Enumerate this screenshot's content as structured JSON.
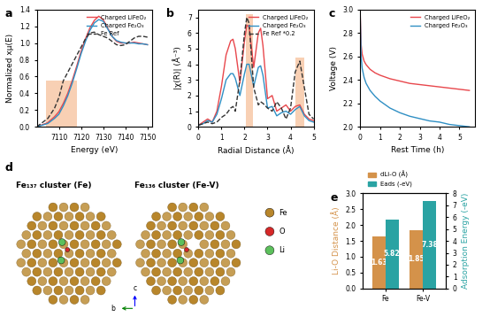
{
  "chart_data": [
    {
      "type": "line",
      "panel_label": "a",
      "x_label": "Energy (eV)",
      "y_label": "Normalized xμ(E)",
      "x": [
        7100,
        7105,
        7108,
        7110,
        7112,
        7114,
        7116,
        7118,
        7120,
        7122,
        7124,
        7126,
        7128,
        7130,
        7132,
        7134,
        7136,
        7138,
        7140,
        7142,
        7144,
        7146,
        7148,
        7150
      ],
      "series": [
        {
          "name": "Charged LiFeO₂",
          "color": "#e8474c",
          "line_style": "solid",
          "values": [
            0.0,
            0.05,
            0.12,
            0.18,
            0.28,
            0.4,
            0.55,
            0.72,
            0.9,
            1.05,
            1.18,
            1.27,
            1.32,
            1.28,
            1.18,
            1.08,
            1.02,
            1.0,
            1.0,
            1.0,
            1.01,
            1.0,
            0.99,
            0.98
          ]
        },
        {
          "name": "Charged Fe₂O₃",
          "color": "#2f8fc4",
          "line_style": "solid",
          "values": [
            0.0,
            0.04,
            0.1,
            0.15,
            0.25,
            0.37,
            0.52,
            0.69,
            0.87,
            1.02,
            1.15,
            1.24,
            1.28,
            1.26,
            1.17,
            1.08,
            1.03,
            1.01,
            1.0,
            1.0,
            1.0,
            0.99,
            0.99,
            0.98
          ]
        },
        {
          "name": "Fe Ref",
          "color": "#333333",
          "line_style": "dashed",
          "values": [
            0.0,
            0.1,
            0.22,
            0.35,
            0.55,
            0.65,
            0.75,
            0.85,
            0.95,
            1.05,
            1.12,
            1.13,
            1.1,
            1.08,
            1.06,
            1.02,
            0.98,
            0.97,
            0.98,
            1.02,
            1.06,
            1.08,
            1.08,
            1.07
          ]
        }
      ],
      "shaded": [
        {
          "x": [
            7104,
            7118
          ],
          "y": [
            0,
            0.55
          ]
        }
      ],
      "xlim": [
        7100,
        7152
      ],
      "xticks": [
        7110,
        7120,
        7130,
        7140,
        7150
      ],
      "ylim": [
        0.0,
        1.4
      ],
      "yticks": [
        0.0,
        0.2,
        0.4,
        0.6,
        0.8,
        1.0,
        1.2,
        1.4
      ],
      "legend": "upper right"
    },
    {
      "type": "line",
      "panel_label": "b",
      "x_label": "Radial Distance (Å)",
      "y_label": "|χ(R)| (Å⁻³)",
      "x": [
        0,
        0.2,
        0.4,
        0.6,
        0.8,
        1.0,
        1.2,
        1.4,
        1.5,
        1.6,
        1.8,
        2.0,
        2.1,
        2.2,
        2.4,
        2.6,
        2.7,
        2.8,
        3.0,
        3.2,
        3.4,
        3.6,
        3.8,
        4.0,
        4.2,
        4.4,
        4.6,
        4.8,
        5.0
      ],
      "series": [
        {
          "name": "Charged LiFeO₂",
          "color": "#e8474c",
          "line_style": "solid",
          "values": [
            0.1,
            0.3,
            0.5,
            0.3,
            1.0,
            2.6,
            4.6,
            5.5,
            5.6,
            5.0,
            2.8,
            5.5,
            6.5,
            6.4,
            3.8,
            6.0,
            6.3,
            5.2,
            1.8,
            2.0,
            1.0,
            1.2,
            1.4,
            1.0,
            1.3,
            1.4,
            0.8,
            0.5,
            0.4
          ]
        },
        {
          "name": "Charged Fe₂O₃",
          "color": "#2f8fc4",
          "line_style": "solid",
          "values": [
            0.1,
            0.2,
            0.4,
            0.3,
            0.8,
            1.8,
            3.0,
            3.4,
            3.4,
            3.1,
            2.0,
            3.4,
            4.0,
            4.0,
            2.6,
            3.8,
            3.9,
            3.3,
            1.2,
            1.3,
            0.7,
            0.9,
            1.0,
            0.8,
            1.1,
            1.3,
            0.7,
            0.4,
            0.3
          ]
        },
        {
          "name": "Fe Ref *0.2",
          "color": "#333333",
          "line_style": "dashed",
          "values": [
            0.1,
            0.2,
            0.3,
            0.2,
            0.3,
            0.6,
            0.8,
            1.2,
            1.3,
            1.0,
            3.0,
            6.0,
            7.0,
            6.6,
            2.5,
            1.4,
            1.6,
            1.5,
            1.2,
            1.0,
            1.6,
            1.2,
            0.5,
            1.2,
            3.5,
            4.2,
            2.5,
            0.8,
            0.5
          ]
        }
      ],
      "shaded": [
        {
          "x": [
            2.05,
            2.35
          ],
          "y": [
            0,
            7.2
          ]
        },
        {
          "x": [
            4.2,
            4.6
          ],
          "y": [
            0,
            4.4
          ]
        }
      ],
      "xlim": [
        0,
        5
      ],
      "xticks": [
        0,
        1,
        2,
        3,
        4,
        5
      ],
      "ylim": [
        0,
        7.5
      ],
      "yticks": [
        0,
        1,
        2,
        3,
        4,
        5,
        6,
        7
      ],
      "legend": "upper right"
    },
    {
      "type": "line",
      "panel_label": "c",
      "x_label": "Rest Time (h)",
      "y_label": "Voltage (V)",
      "x": [
        0,
        0.05,
        0.1,
        0.2,
        0.3,
        0.5,
        0.75,
        1,
        1.5,
        2,
        2.5,
        3,
        3.5,
        4,
        4.5,
        5,
        5.5
      ],
      "series": [
        {
          "name": "Charged LiFeO₂",
          "color": "#e8474c",
          "line_style": "solid",
          "values": [
            2.98,
            2.7,
            2.62,
            2.56,
            2.53,
            2.49,
            2.46,
            2.44,
            2.41,
            2.39,
            2.37,
            2.36,
            2.35,
            2.34,
            2.33,
            2.32,
            2.31
          ]
        },
        {
          "name": "Charged Fe₂O₃",
          "color": "#2f8fc4",
          "line_style": "solid",
          "values": [
            2.98,
            2.6,
            2.5,
            2.42,
            2.37,
            2.31,
            2.26,
            2.22,
            2.16,
            2.12,
            2.09,
            2.07,
            2.05,
            2.04,
            2.02,
            2.01,
            2.0
          ]
        }
      ],
      "xlim": [
        0,
        5.8
      ],
      "xticks": [
        0,
        1,
        2,
        3,
        4,
        5
      ],
      "ylim": [
        2.0,
        3.0
      ],
      "yticks": [
        2.0,
        2.2,
        2.4,
        2.6,
        2.8,
        3.0
      ],
      "legend": "upper right"
    },
    {
      "type": "bar",
      "panel_label": "e",
      "categories": [
        "Fe",
        "Fe-V"
      ],
      "y_label": "Li-O Distance (Å)",
      "y2_label": "Adsorption Energy (-eV)",
      "series": [
        {
          "name": "dLi-O (Å)",
          "color": "#d4924a",
          "values": [
            1.63,
            1.85
          ]
        },
        {
          "name": "Eads (-eV)",
          "color": "#2aa3a3",
          "axis": "y2",
          "values": [
            5.82,
            7.38
          ]
        }
      ],
      "ylim": [
        0.0,
        3.0
      ],
      "yticks": [
        0.0,
        0.5,
        1.0,
        1.5,
        2.0,
        2.5,
        3.0
      ],
      "y2lim": [
        0,
        8
      ],
      "y2ticks": [
        0,
        1,
        2,
        3,
        4,
        5,
        6,
        7,
        8
      ],
      "data_labels": true,
      "legend": "upper left"
    }
  ],
  "diagram": {
    "panel_label": "d",
    "clusters": [
      {
        "title": "Fe₁₃₇ cluster (Fe)"
      },
      {
        "title": "Fe₁₃₆ cluster (Fe-V)"
      }
    ],
    "legend": [
      {
        "name": "Fe",
        "color": "#b8862b"
      },
      {
        "name": "O",
        "color": "#d62828"
      },
      {
        "name": "Li",
        "color": "#5cc05c"
      }
    ],
    "axes_labels": [
      "b",
      "c"
    ]
  }
}
